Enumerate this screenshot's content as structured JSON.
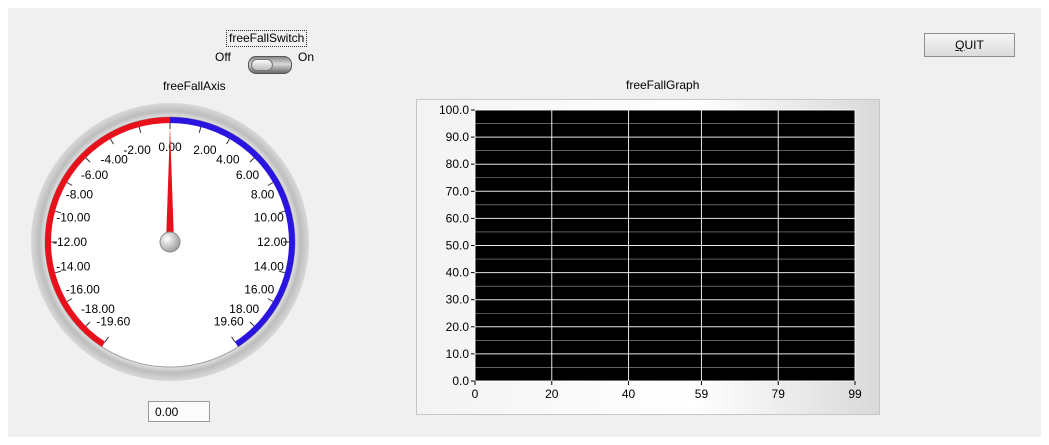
{
  "switch": {
    "label": "freeFallSwitch",
    "off_label": "Off",
    "on_label": "On",
    "state": "off"
  },
  "gauge": {
    "label": "freeFallAxis",
    "value": 0.0,
    "display": "0.00",
    "min": -19.6,
    "max": 19.6,
    "neg_color": "#e8101a",
    "pos_color": "#2a14e0",
    "needle_color": "#e8101a",
    "ticks": [
      {
        "v": -19.6,
        "t": "-19.60"
      },
      {
        "v": -18,
        "t": "-18.00"
      },
      {
        "v": -16,
        "t": "-16.00"
      },
      {
        "v": -14,
        "t": "-14.00"
      },
      {
        "v": -12,
        "t": "-12.00"
      },
      {
        "v": -10,
        "t": "-10.00"
      },
      {
        "v": -8,
        "t": "-8.00"
      },
      {
        "v": -6,
        "t": "-6.00"
      },
      {
        "v": -4,
        "t": "-4.00"
      },
      {
        "v": -2,
        "t": "-2.00"
      },
      {
        "v": 0,
        "t": "0.00"
      },
      {
        "v": 2,
        "t": "2.00"
      },
      {
        "v": 4,
        "t": "4.00"
      },
      {
        "v": 6,
        "t": "6.00"
      },
      {
        "v": 8,
        "t": "8.00"
      },
      {
        "v": 10,
        "t": "10.00"
      },
      {
        "v": 12,
        "t": "12.00"
      },
      {
        "v": 14,
        "t": "14.00"
      },
      {
        "v": 16,
        "t": "16.00"
      },
      {
        "v": 18,
        "t": "18.00"
      },
      {
        "v": 19.6,
        "t": "19.60"
      }
    ]
  },
  "graph": {
    "title": "freeFallGraph",
    "plot_bg": "#000000",
    "grid_color": "#ffffff",
    "y_ticks": [
      "0.0",
      "10.0",
      "20.0",
      "30.0",
      "40.0",
      "50.0",
      "60.0",
      "70.0",
      "80.0",
      "90.0",
      "100.0"
    ],
    "x_ticks": [
      "0",
      "20",
      "40",
      "59",
      "79",
      "99"
    ],
    "x_values": [
      0,
      20,
      40,
      59,
      79,
      99
    ],
    "y_range": [
      0,
      100
    ],
    "x_range": [
      0,
      99
    ]
  },
  "quit": {
    "label": "QUIT",
    "mnemonic": "Q",
    "rest": "UIT"
  }
}
